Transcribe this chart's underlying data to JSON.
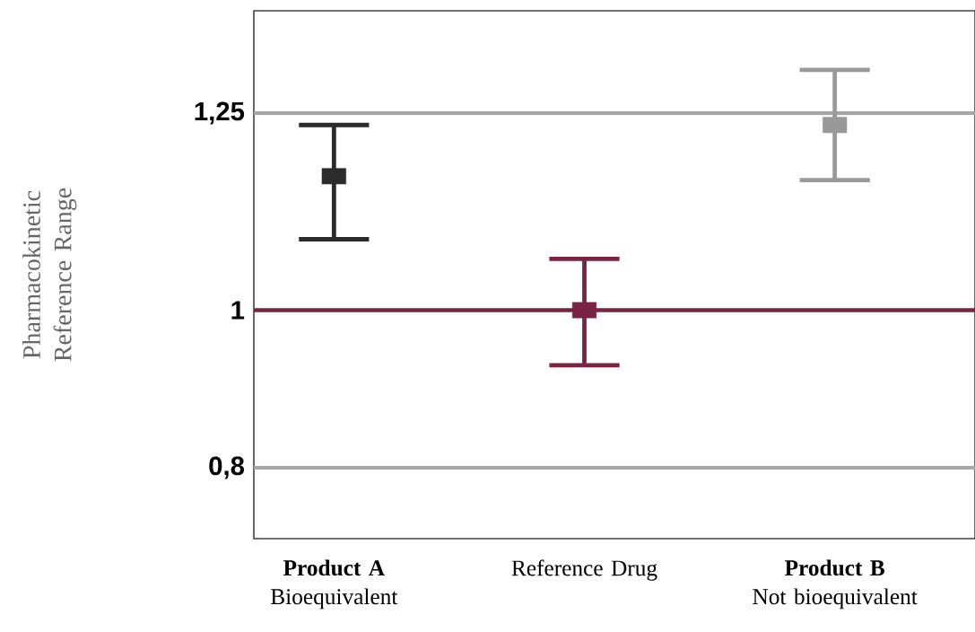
{
  "chart_data": {
    "type": "scatter",
    "ylabel": "Pharmacokinetic Reference Range",
    "categories": [
      "**Product A** Bioequivalent",
      "Reference Drug",
      "**Product B** Not bioequivalent"
    ],
    "values": [
      1.17,
      1.0,
      1.235
    ],
    "errors": [
      [
        1.09,
        1.235
      ],
      [
        0.93,
        1.065
      ],
      [
        1.165,
        1.305
      ]
    ],
    "colors": [
      "#2b2b2b",
      "#7b2342",
      "#999999"
    ],
    "marker": "square",
    "ylim": [
      0.71,
      1.38
    ],
    "yticks": [
      {
        "value": 0.8,
        "label": "0,8"
      },
      1,
      {
        "value": 1.25,
        "label": "1,25"
      }
    ],
    "ref_lines": [
      {
        "axis": "y",
        "value": 1.25,
        "color": "#a6a6a6"
      },
      {
        "axis": "y",
        "value": 1,
        "color": "#7b2342"
      },
      {
        "axis": "y",
        "value": 0.8,
        "color": "#a6a6a6"
      }
    ]
  }
}
